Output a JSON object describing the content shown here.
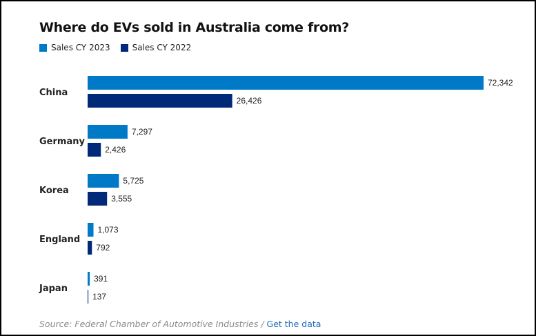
{
  "chart_data": {
    "type": "bar",
    "orientation": "horizontal",
    "title": "Where do EVs sold in Australia come from?",
    "categories": [
      "China",
      "Germany",
      "Korea",
      "England",
      "Japan"
    ],
    "series": [
      {
        "name": "Sales CY 2023",
        "color": "#0079c7",
        "values": [
          72342,
          7297,
          5725,
          1073,
          391
        ],
        "labels": [
          "72,342",
          "7,297",
          "5,725",
          "1,073",
          "391"
        ]
      },
      {
        "name": "Sales CY 2022",
        "color": "#00297a",
        "values": [
          26426,
          2426,
          3555,
          792,
          137
        ],
        "labels": [
          "26,426",
          "2,426",
          "3,555",
          "792",
          "137"
        ]
      }
    ],
    "xlabel": "",
    "ylabel": "",
    "xlim": [
      0,
      72342
    ],
    "grid": false,
    "legend": "top-left",
    "data_labels": true
  },
  "footer": {
    "source_text": "Source: Federal Chamber of Automotive Industries / ",
    "link_text": "Get the data"
  }
}
